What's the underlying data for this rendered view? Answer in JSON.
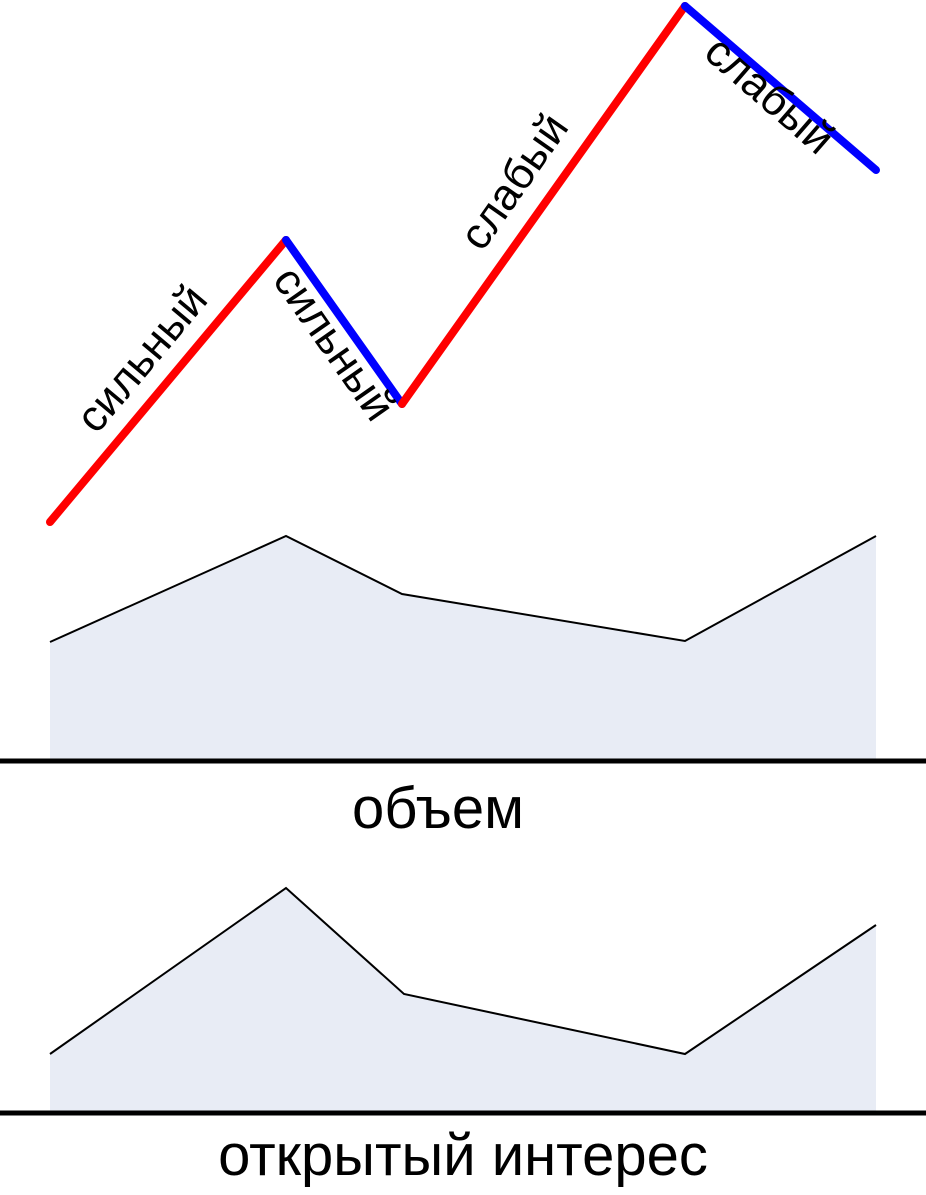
{
  "colors": {
    "up_segment": "#ff0000",
    "down_segment": "#0000ff",
    "area_fill": "#e8ecf5",
    "area_line": "#000000"
  },
  "segments": [
    {
      "label": "сильный",
      "direction": "up"
    },
    {
      "label": "сильный",
      "direction": "down"
    },
    {
      "label": "слабый",
      "direction": "up"
    },
    {
      "label": "слабый",
      "direction": "down"
    }
  ],
  "volume_panel": {
    "label": "объем"
  },
  "open_interest_panel": {
    "label": "открытый интерес"
  }
}
